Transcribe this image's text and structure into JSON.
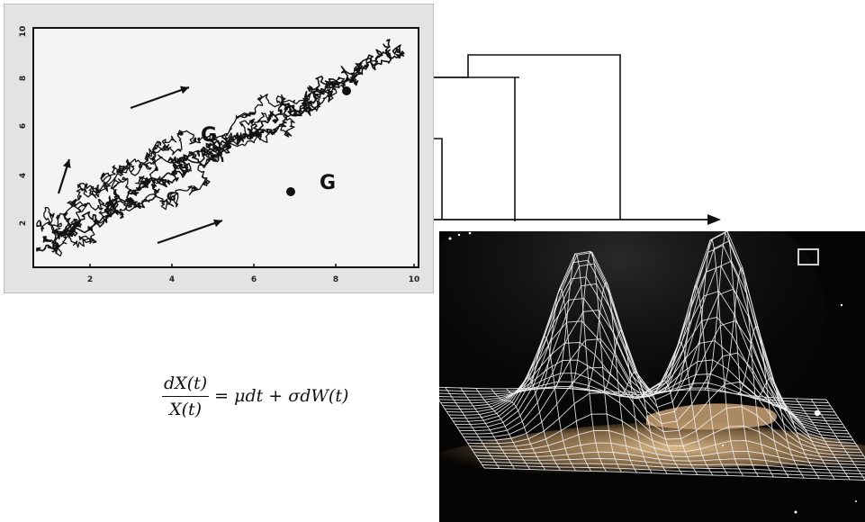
{
  "random_walk_chart": {
    "x_ticks": [
      "2",
      "4",
      "6",
      "8",
      "10"
    ],
    "y_ticks": [
      "10",
      "8",
      "6",
      "4",
      "2"
    ],
    "annotation_marks": [
      "G",
      "G",
      "G"
    ]
  },
  "formula": {
    "numerator": "dX(t)",
    "denominator": "X(t)",
    "rhs": "= μdt + σdW(t)"
  },
  "colors": {
    "chart_background": "#e3e3e3",
    "ink": "#111111",
    "surface_background": "#050505",
    "mesh": "#f2f2f2",
    "hand_tone": "#caa77a"
  },
  "icons": {
    "tree_arrow": "right-arrow-icon",
    "viewfinder": "square-outline-icon"
  }
}
